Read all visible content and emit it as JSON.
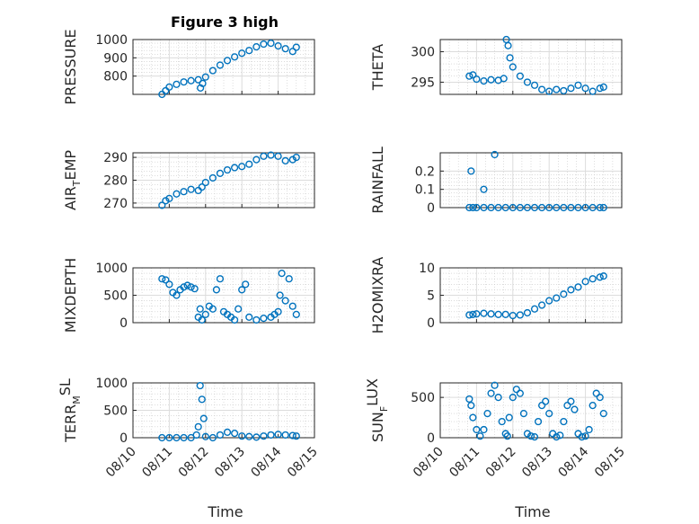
{
  "figure": {
    "title": "Figure 3 high",
    "marker_color": "#0072BD"
  },
  "chart_data": [
    {
      "type": "scatter",
      "ylabel": "PRESSURE",
      "yticks": [
        "800",
        "900",
        "1000"
      ],
      "ylim": [
        700,
        1000
      ],
      "x_date_range": [
        "08/10",
        "08/15"
      ],
      "x": [
        0.8,
        0.9,
        1.0,
        1.2,
        1.4,
        1.6,
        1.8,
        1.86,
        1.92,
        2.0,
        2.2,
        2.4,
        2.6,
        2.8,
        3.0,
        3.2,
        3.4,
        3.6,
        3.8,
        4.0,
        4.2,
        4.4,
        4.5
      ],
      "y": [
        700,
        720,
        740,
        755,
        768,
        775,
        780,
        735,
        760,
        795,
        830,
        860,
        885,
        905,
        925,
        940,
        960,
        975,
        980,
        965,
        950,
        935,
        958
      ]
    },
    {
      "type": "scatter",
      "ylabel": "THETA",
      "yticks": [
        "295",
        "300"
      ],
      "ylim": [
        293,
        302
      ],
      "x_date_range": [
        "08/10",
        "08/15"
      ],
      "x": [
        0.8,
        0.9,
        1.0,
        1.2,
        1.4,
        1.6,
        1.75,
        1.82,
        1.87,
        1.92,
        2.0,
        2.2,
        2.4,
        2.6,
        2.8,
        3.0,
        3.2,
        3.4,
        3.6,
        3.8,
        4.0,
        4.2,
        4.4,
        4.5
      ],
      "y": [
        296.0,
        296.2,
        295.5,
        295.2,
        295.4,
        295.3,
        295.6,
        302.0,
        301.0,
        299.0,
        297.5,
        296.0,
        295.0,
        294.5,
        293.8,
        293.5,
        293.8,
        293.6,
        294.0,
        294.5,
        294.0,
        293.5,
        294.0,
        294.2
      ]
    },
    {
      "type": "scatter",
      "ylabel": "AIR_TEMP",
      "ylabel_parts": [
        "AIR",
        "T",
        "EMP"
      ],
      "yticks": [
        "270",
        "280",
        "290"
      ],
      "ylim": [
        268,
        292
      ],
      "x_date_range": [
        "08/10",
        "08/15"
      ],
      "x": [
        0.8,
        0.9,
        1.0,
        1.2,
        1.4,
        1.6,
        1.8,
        1.9,
        2.0,
        2.2,
        2.4,
        2.6,
        2.8,
        3.0,
        3.2,
        3.4,
        3.6,
        3.8,
        4.0,
        4.2,
        4.4,
        4.5
      ],
      "y": [
        269,
        271,
        272,
        274,
        275,
        276,
        275.5,
        277,
        279,
        281,
        283,
        284.5,
        285.5,
        286,
        287,
        289,
        290.5,
        291,
        290.5,
        288.5,
        289,
        290
      ]
    },
    {
      "type": "scatter",
      "ylabel": "RAINFALL",
      "yticks": [
        "0",
        "0.1",
        "0.2"
      ],
      "ylim": [
        0,
        0.3
      ],
      "x_date_range": [
        "08/10",
        "08/15"
      ],
      "x": [
        0.8,
        0.9,
        1.0,
        1.2,
        1.4,
        1.6,
        1.8,
        2.0,
        2.2,
        2.4,
        2.6,
        2.8,
        3.0,
        3.2,
        3.4,
        3.6,
        3.8,
        4.0,
        4.2,
        4.4,
        4.5,
        0.85,
        1.2,
        1.5
      ],
      "y": [
        0,
        0,
        0,
        0,
        0,
        0,
        0,
        0,
        0,
        0,
        0,
        0,
        0,
        0,
        0,
        0,
        0,
        0,
        0,
        0,
        0,
        0.2,
        0.1,
        0.29
      ]
    },
    {
      "type": "scatter",
      "ylabel": "MIXDEPTH",
      "yticks": [
        "0",
        "500",
        "1000"
      ],
      "ylim": [
        0,
        1000
      ],
      "x_date_range": [
        "08/10",
        "08/15"
      ],
      "x": [
        0.8,
        0.9,
        1.0,
        1.1,
        1.2,
        1.3,
        1.4,
        1.5,
        1.6,
        1.7,
        1.8,
        1.85,
        1.9,
        2.0,
        2.1,
        2.2,
        2.3,
        2.4,
        2.5,
        2.6,
        2.7,
        2.8,
        2.9,
        3.0,
        3.1,
        3.2,
        3.4,
        3.6,
        3.8,
        3.9,
        4.0,
        4.05,
        4.1,
        4.2,
        4.3,
        4.4,
        4.5
      ],
      "y": [
        800,
        780,
        700,
        550,
        500,
        600,
        650,
        680,
        650,
        620,
        100,
        250,
        50,
        150,
        300,
        250,
        600,
        800,
        200,
        150,
        100,
        50,
        250,
        600,
        700,
        100,
        50,
        80,
        100,
        150,
        200,
        500,
        900,
        400,
        800,
        300,
        150
      ]
    },
    {
      "type": "scatter",
      "ylabel": "H2OMIXRA",
      "yticks": [
        "0",
        "5",
        "10"
      ],
      "ylim": [
        0,
        10
      ],
      "x_date_range": [
        "08/10",
        "08/15"
      ],
      "x": [
        0.8,
        0.9,
        1.0,
        1.2,
        1.4,
        1.6,
        1.8,
        2.0,
        2.2,
        2.4,
        2.6,
        2.8,
        3.0,
        3.2,
        3.4,
        3.6,
        3.8,
        4.0,
        4.2,
        4.4,
        4.5
      ],
      "y": [
        1.4,
        1.5,
        1.6,
        1.7,
        1.6,
        1.5,
        1.5,
        1.3,
        1.4,
        1.8,
        2.5,
        3.2,
        4.0,
        4.5,
        5.2,
        6.0,
        6.5,
        7.5,
        8.0,
        8.3,
        8.5
      ]
    },
    {
      "type": "scatter",
      "ylabel": "TERR_MSL",
      "ylabel_parts": [
        "TERR",
        "M",
        "SL"
      ],
      "yticks": [
        "0",
        "500",
        "1000"
      ],
      "ylim": [
        0,
        1000
      ],
      "x_date_range": [
        "08/10",
        "08/15"
      ],
      "xticks": [
        "08/10",
        "08/11",
        "08/12",
        "08/13",
        "08/14",
        "08/15"
      ],
      "xlabel": "Time",
      "x": [
        0.8,
        1.0,
        1.2,
        1.4,
        1.6,
        1.75,
        1.8,
        1.85,
        1.9,
        1.95,
        2.0,
        2.2,
        2.4,
        2.6,
        2.8,
        3.0,
        3.2,
        3.4,
        3.6,
        3.8,
        4.0,
        4.2,
        4.4,
        4.5
      ],
      "y": [
        0,
        0,
        0,
        0,
        0,
        50,
        200,
        950,
        700,
        350,
        20,
        0,
        50,
        100,
        80,
        30,
        20,
        10,
        30,
        50,
        60,
        50,
        40,
        30
      ]
    },
    {
      "type": "scatter",
      "ylabel": "SUN_FLUX",
      "ylabel_parts": [
        "SUN",
        "F",
        "LUX"
      ],
      "yticks": [
        "0",
        "500"
      ],
      "ylim": [
        0,
        680
      ],
      "x_date_range": [
        "08/10",
        "08/15"
      ],
      "xticks": [
        "08/10",
        "08/11",
        "08/12",
        "08/13",
        "08/14",
        "08/15"
      ],
      "xlabel": "Time",
      "x": [
        0.8,
        0.85,
        0.9,
        1.0,
        1.1,
        1.2,
        1.3,
        1.4,
        1.5,
        1.6,
        1.7,
        1.8,
        1.85,
        1.9,
        2.0,
        2.1,
        2.2,
        2.3,
        2.4,
        2.5,
        2.6,
        2.7,
        2.8,
        2.9,
        3.0,
        3.1,
        3.2,
        3.3,
        3.4,
        3.5,
        3.6,
        3.7,
        3.8,
        3.9,
        4.0,
        4.1,
        4.2,
        4.3,
        4.4,
        4.5
      ],
      "y": [
        480,
        400,
        250,
        100,
        20,
        100,
        300,
        550,
        650,
        500,
        200,
        50,
        20,
        250,
        500,
        600,
        550,
        300,
        50,
        20,
        10,
        200,
        400,
        450,
        300,
        50,
        10,
        30,
        200,
        400,
        450,
        350,
        50,
        10,
        20,
        100,
        400,
        550,
        500,
        300
      ]
    }
  ]
}
